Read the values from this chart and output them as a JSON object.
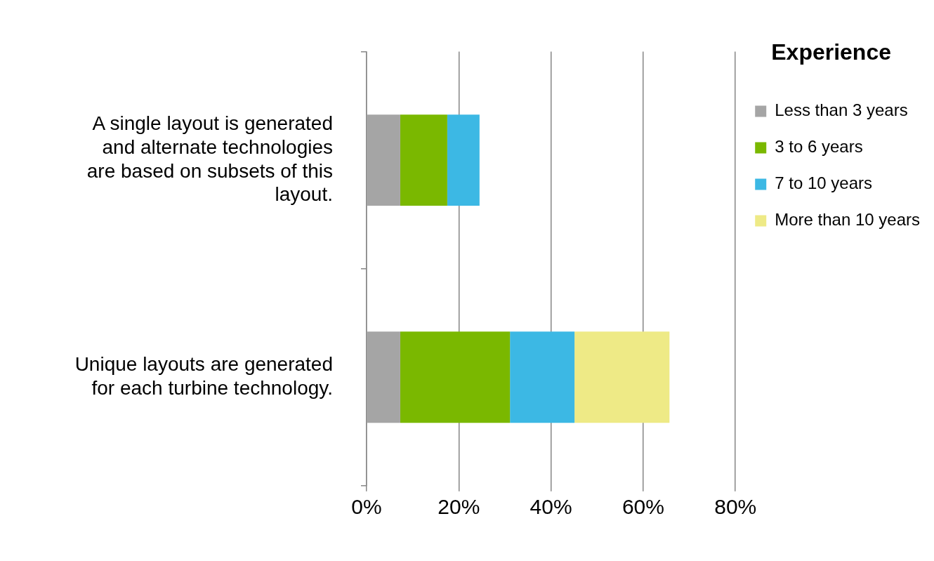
{
  "chart_data": {
    "type": "bar",
    "orientation": "horizontal",
    "stacked": true,
    "categories": [
      "A single layout is generated and alternate technologies are based on subsets of this layout.",
      "Unique layouts are generated for each turbine technology."
    ],
    "series": [
      {
        "name": "Less than 3 years",
        "color": "#a5a5a5",
        "values": [
          7.3,
          7.3
        ]
      },
      {
        "name": "3 to 6 years",
        "color": "#7ab800",
        "values": [
          10.2,
          23.8
        ]
      },
      {
        "name": "7 to 10 years",
        "color": "#3cb8e4",
        "values": [
          7,
          14
        ]
      },
      {
        "name": "More than 10 years",
        "color": "#eeea86",
        "values": [
          0,
          20.6
        ]
      }
    ],
    "legend_title": "Experience",
    "legend": "right",
    "xlim": [
      0,
      80
    ],
    "xticks": [
      {
        "value": 0,
        "label": "0%"
      },
      {
        "value": 20,
        "label": "20%"
      },
      {
        "value": 40,
        "label": "40%"
      },
      {
        "value": 60,
        "label": "60%"
      },
      {
        "value": 80,
        "label": "80%"
      }
    ],
    "grid": "x"
  }
}
